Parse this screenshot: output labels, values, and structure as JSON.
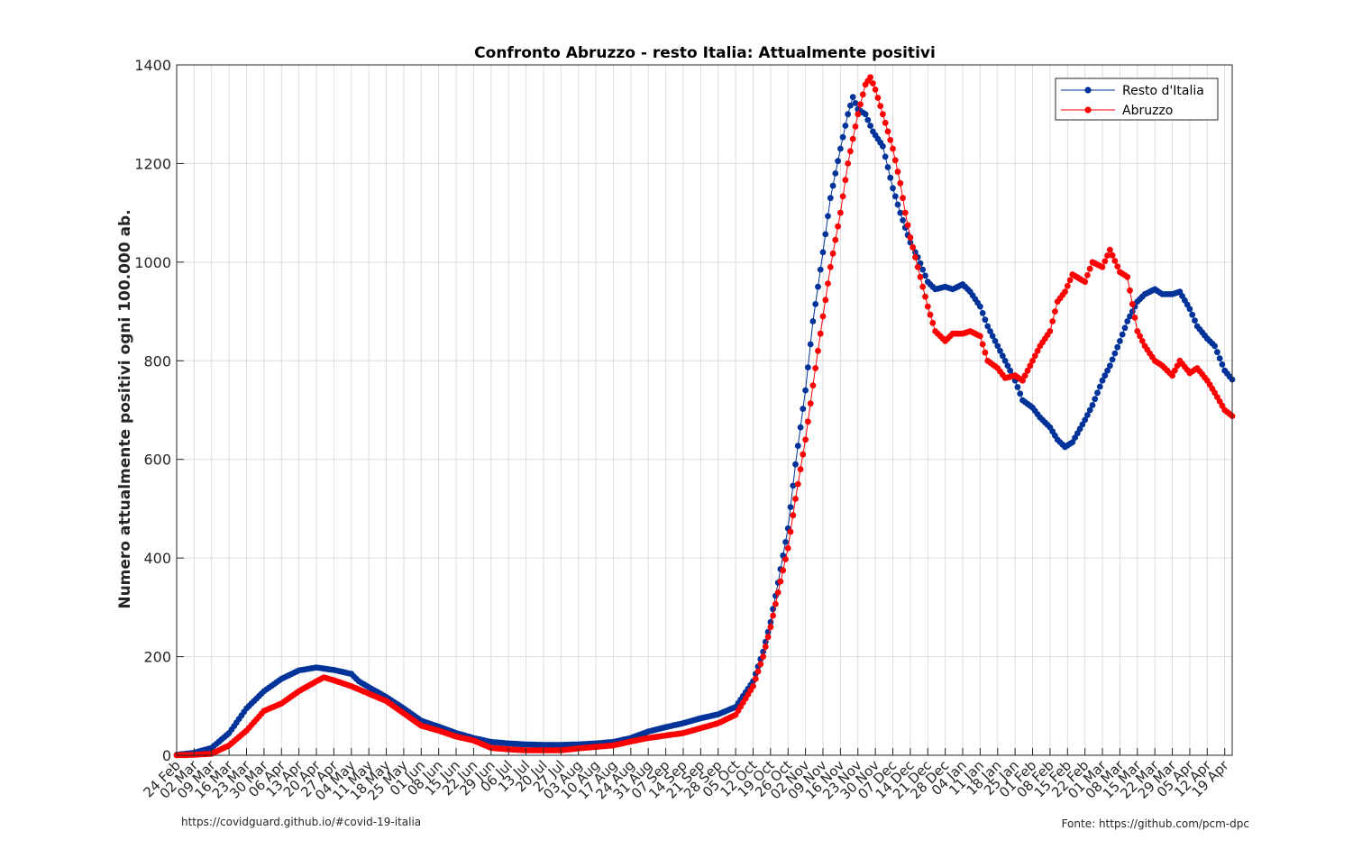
{
  "chart_data": {
    "type": "line",
    "title": "Confronto Abruzzo - resto Italia: Attualmente positivi",
    "xlabel": "",
    "ylabel": "Numero attualmente positivi ogni 100.000 ab.",
    "ylim": [
      0,
      1400
    ],
    "yticks": [
      0,
      200,
      400,
      600,
      800,
      1000,
      1200,
      1400
    ],
    "x_start": "2020-02-24",
    "x_end": "2021-04-22",
    "xtick_labels": [
      "24 Feb",
      "02 Mar",
      "09 Mar",
      "16 Mar",
      "23 Mar",
      "30 Mar",
      "06 Apr",
      "13 Apr",
      "20 Apr",
      "27 Apr",
      "04 May",
      "11 May",
      "18 May",
      "25 May",
      "01 Jun",
      "08 Jun",
      "15 Jun",
      "22 Jun",
      "29 Jun",
      "06 Jul",
      "13 Jul",
      "20 Jul",
      "27 Jul",
      "03 Aug",
      "10 Aug",
      "17 Aug",
      "24 Aug",
      "31 Aug",
      "07 Sep",
      "14 Sep",
      "21 Sep",
      "28 Sep",
      "05 Oct",
      "12 Oct",
      "19 Oct",
      "26 Oct",
      "02 Nov",
      "09 Nov",
      "16 Nov",
      "23 Nov",
      "30 Nov",
      "07 Dec",
      "14 Dec",
      "21 Dec",
      "28 Dec",
      "04 Jan",
      "11 Jan",
      "18 Jan",
      "25 Jan",
      "01 Feb",
      "08 Feb",
      "15 Feb",
      "22 Feb",
      "01 Mar",
      "08 Mar",
      "15 Mar",
      "22 Mar",
      "29 Mar",
      "05 Apr",
      "12 Apr",
      "19 Apr"
    ],
    "grid": true,
    "legend_position": "top-right",
    "series": [
      {
        "name": "Resto d'Italia",
        "color": "#003399",
        "points": [
          [
            "2020-02-24",
            1
          ],
          [
            "2020-03-02",
            5
          ],
          [
            "2020-03-09",
            15
          ],
          [
            "2020-03-16",
            45
          ],
          [
            "2020-03-23",
            95
          ],
          [
            "2020-03-30",
            130
          ],
          [
            "2020-04-06",
            155
          ],
          [
            "2020-04-13",
            172
          ],
          [
            "2020-04-20",
            178
          ],
          [
            "2020-04-27",
            173
          ],
          [
            "2020-05-04",
            165
          ],
          [
            "2020-05-07",
            150
          ],
          [
            "2020-05-11",
            138
          ],
          [
            "2020-05-18",
            118
          ],
          [
            "2020-05-25",
            95
          ],
          [
            "2020-06-01",
            70
          ],
          [
            "2020-06-08",
            58
          ],
          [
            "2020-06-15",
            45
          ],
          [
            "2020-06-22",
            35
          ],
          [
            "2020-06-29",
            27
          ],
          [
            "2020-07-06",
            24
          ],
          [
            "2020-07-13",
            22
          ],
          [
            "2020-07-20",
            21
          ],
          [
            "2020-07-27",
            21
          ],
          [
            "2020-08-03",
            22
          ],
          [
            "2020-08-10",
            24
          ],
          [
            "2020-08-17",
            27
          ],
          [
            "2020-08-24",
            35
          ],
          [
            "2020-08-31",
            48
          ],
          [
            "2020-09-07",
            57
          ],
          [
            "2020-09-14",
            65
          ],
          [
            "2020-09-21",
            75
          ],
          [
            "2020-09-28",
            83
          ],
          [
            "2020-10-05",
            98
          ],
          [
            "2020-10-12",
            150
          ],
          [
            "2020-10-16",
            210
          ],
          [
            "2020-10-19",
            270
          ],
          [
            "2020-10-22",
            350
          ],
          [
            "2020-10-26",
            460
          ],
          [
            "2020-10-29",
            590
          ],
          [
            "2020-11-02",
            740
          ],
          [
            "2020-11-05",
            880
          ],
          [
            "2020-11-09",
            1020
          ],
          [
            "2020-11-12",
            1130
          ],
          [
            "2020-11-16",
            1230
          ],
          [
            "2020-11-19",
            1300
          ],
          [
            "2020-11-21",
            1335
          ],
          [
            "2020-11-23",
            1310
          ],
          [
            "2020-11-26",
            1300
          ],
          [
            "2020-11-29",
            1265
          ],
          [
            "2020-12-03",
            1235
          ],
          [
            "2020-12-07",
            1150
          ],
          [
            "2020-12-10",
            1100
          ],
          [
            "2020-12-14",
            1040
          ],
          [
            "2020-12-17",
            1010
          ],
          [
            "2020-12-21",
            960
          ],
          [
            "2020-12-24",
            945
          ],
          [
            "2020-12-28",
            950
          ],
          [
            "2020-12-31",
            945
          ],
          [
            "2021-01-04",
            955
          ],
          [
            "2021-01-07",
            940
          ],
          [
            "2021-01-11",
            910
          ],
          [
            "2021-01-14",
            870
          ],
          [
            "2021-01-18",
            830
          ],
          [
            "2021-01-21",
            800
          ],
          [
            "2021-01-25",
            760
          ],
          [
            "2021-01-28",
            720
          ],
          [
            "2021-02-01",
            705
          ],
          [
            "2021-02-04",
            685
          ],
          [
            "2021-02-08",
            665
          ],
          [
            "2021-02-11",
            640
          ],
          [
            "2021-02-14",
            625
          ],
          [
            "2021-02-17",
            635
          ],
          [
            "2021-02-22",
            680
          ],
          [
            "2021-02-25",
            710
          ],
          [
            "2021-03-01",
            760
          ],
          [
            "2021-03-04",
            790
          ],
          [
            "2021-03-08",
            840
          ],
          [
            "2021-03-11",
            880
          ],
          [
            "2021-03-15",
            920
          ],
          [
            "2021-03-18",
            935
          ],
          [
            "2021-03-22",
            945
          ],
          [
            "2021-03-25",
            935
          ],
          [
            "2021-03-29",
            935
          ],
          [
            "2021-04-01",
            940
          ],
          [
            "2021-04-05",
            905
          ],
          [
            "2021-04-08",
            870
          ],
          [
            "2021-04-12",
            845
          ],
          [
            "2021-04-15",
            830
          ],
          [
            "2021-04-19",
            780
          ],
          [
            "2021-04-22",
            762
          ]
        ]
      },
      {
        "name": "Abruzzo",
        "color": "#ff0000",
        "points": [
          [
            "2020-02-24",
            0
          ],
          [
            "2020-03-02",
            1
          ],
          [
            "2020-03-09",
            3
          ],
          [
            "2020-03-16",
            20
          ],
          [
            "2020-03-23",
            50
          ],
          [
            "2020-03-30",
            90
          ],
          [
            "2020-04-06",
            105
          ],
          [
            "2020-04-13",
            130
          ],
          [
            "2020-04-20",
            150
          ],
          [
            "2020-04-23",
            158
          ],
          [
            "2020-04-27",
            152
          ],
          [
            "2020-05-04",
            140
          ],
          [
            "2020-05-11",
            125
          ],
          [
            "2020-05-18",
            110
          ],
          [
            "2020-05-25",
            85
          ],
          [
            "2020-06-01",
            60
          ],
          [
            "2020-06-08",
            50
          ],
          [
            "2020-06-15",
            38
          ],
          [
            "2020-06-22",
            30
          ],
          [
            "2020-06-29",
            15
          ],
          [
            "2020-07-06",
            12
          ],
          [
            "2020-07-13",
            10
          ],
          [
            "2020-07-20",
            10
          ],
          [
            "2020-07-27",
            10
          ],
          [
            "2020-08-03",
            14
          ],
          [
            "2020-08-10",
            17
          ],
          [
            "2020-08-17",
            20
          ],
          [
            "2020-08-24",
            28
          ],
          [
            "2020-08-31",
            35
          ],
          [
            "2020-09-07",
            40
          ],
          [
            "2020-09-14",
            45
          ],
          [
            "2020-09-21",
            55
          ],
          [
            "2020-09-28",
            65
          ],
          [
            "2020-10-05",
            82
          ],
          [
            "2020-10-12",
            140
          ],
          [
            "2020-10-16",
            200
          ],
          [
            "2020-10-19",
            260
          ],
          [
            "2020-10-22",
            330
          ],
          [
            "2020-10-26",
            420
          ],
          [
            "2020-10-29",
            520
          ],
          [
            "2020-11-02",
            640
          ],
          [
            "2020-11-05",
            750
          ],
          [
            "2020-11-09",
            890
          ],
          [
            "2020-11-12",
            990
          ],
          [
            "2020-11-16",
            1100
          ],
          [
            "2020-11-19",
            1200
          ],
          [
            "2020-11-23",
            1300
          ],
          [
            "2020-11-26",
            1360
          ],
          [
            "2020-11-28",
            1375
          ],
          [
            "2020-11-30",
            1350
          ],
          [
            "2020-12-03",
            1300
          ],
          [
            "2020-12-07",
            1230
          ],
          [
            "2020-12-10",
            1160
          ],
          [
            "2020-12-12",
            1100
          ],
          [
            "2020-12-14",
            1050
          ],
          [
            "2020-12-17",
            990
          ],
          [
            "2020-12-21",
            910
          ],
          [
            "2020-12-24",
            860
          ],
          [
            "2020-12-28",
            840
          ],
          [
            "2020-12-31",
            855
          ],
          [
            "2021-01-04",
            855
          ],
          [
            "2021-01-07",
            860
          ],
          [
            "2021-01-11",
            850
          ],
          [
            "2021-01-14",
            800
          ],
          [
            "2021-01-18",
            785
          ],
          [
            "2021-01-21",
            765
          ],
          [
            "2021-01-25",
            770
          ],
          [
            "2021-01-28",
            760
          ],
          [
            "2021-02-01",
            800
          ],
          [
            "2021-02-04",
            830
          ],
          [
            "2021-02-08",
            860
          ],
          [
            "2021-02-11",
            920
          ],
          [
            "2021-02-14",
            940
          ],
          [
            "2021-02-17",
            975
          ],
          [
            "2021-02-22",
            960
          ],
          [
            "2021-02-25",
            1000
          ],
          [
            "2021-03-01",
            990
          ],
          [
            "2021-03-04",
            1025
          ],
          [
            "2021-03-08",
            980
          ],
          [
            "2021-03-11",
            970
          ],
          [
            "2021-03-15",
            860
          ],
          [
            "2021-03-18",
            830
          ],
          [
            "2021-03-22",
            800
          ],
          [
            "2021-03-25",
            790
          ],
          [
            "2021-03-29",
            770
          ],
          [
            "2021-04-01",
            800
          ],
          [
            "2021-04-05",
            775
          ],
          [
            "2021-04-08",
            785
          ],
          [
            "2021-04-12",
            760
          ],
          [
            "2021-04-15",
            735
          ],
          [
            "2021-04-19",
            700
          ],
          [
            "2021-04-22",
            688
          ]
        ]
      }
    ]
  },
  "footer": {
    "left": "https://covidguard.github.io/#covid-19-italia",
    "right": "Fonte: https://github.com/pcm-dpc"
  }
}
